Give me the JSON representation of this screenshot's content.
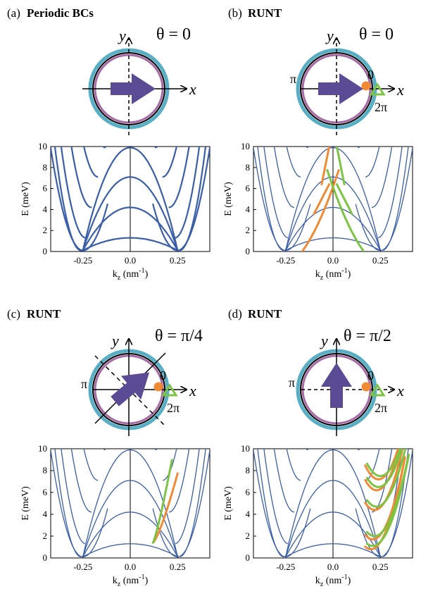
{
  "panels": [
    {
      "id": "a",
      "letter": "(a)",
      "title": "Periodic BCs",
      "theta": "θ = 0",
      "angle_deg": 0,
      "dashed_diagonals": false,
      "markers": false
    },
    {
      "id": "b",
      "letter": "(b)",
      "title": "RUNT",
      "theta": "θ = 0",
      "angle_deg": 0,
      "dashed_diagonals": false,
      "markers": true
    },
    {
      "id": "c",
      "letter": "(c)",
      "title": "RUNT",
      "theta": "θ = π/4",
      "angle_deg": 45,
      "dashed_diagonals": true,
      "markers": true
    },
    {
      "id": "d",
      "letter": "(d)",
      "title": "RUNT",
      "theta": "θ = π/2",
      "angle_deg": 90,
      "dashed_diagonals": false,
      "markers": true
    }
  ],
  "diagram_labels": {
    "x": "x",
    "y": "y",
    "pi": "π",
    "zero": "0",
    "two_pi": "2π"
  },
  "chart_data": {
    "type": "line",
    "xlabel": "k",
    "xlabel_sub": "z",
    "xlabel_unit": "(nm",
    "xlabel_unit_exp": "-1",
    "xlabel_unit_close": ")",
    "ylabel": "E (meV)",
    "xlim": [
      -0.42,
      0.42
    ],
    "ylim": [
      0,
      10
    ],
    "xticks": [
      -0.25,
      0.0,
      0.25
    ],
    "xtick_labels": [
      "-0.25",
      "0.0",
      "0.25"
    ],
    "yticks": [
      0,
      2,
      4,
      6,
      8,
      10
    ],
    "ytick_labels": [
      "0",
      "2",
      "4",
      "6",
      "8",
      "10"
    ],
    "band_energy_at_k0": [
      1.3,
      4.2,
      7.1,
      9.9
    ],
    "band_minimum_k": 0.25,
    "band_minimum_energy": 0.1,
    "colors": {
      "band": "#3a5ea8",
      "orange": "#f08a34",
      "green": "#7dc343",
      "arrow": "#5b4a94",
      "ring_outer": "#58aec5",
      "ring_inner": "#a76aa5"
    }
  }
}
